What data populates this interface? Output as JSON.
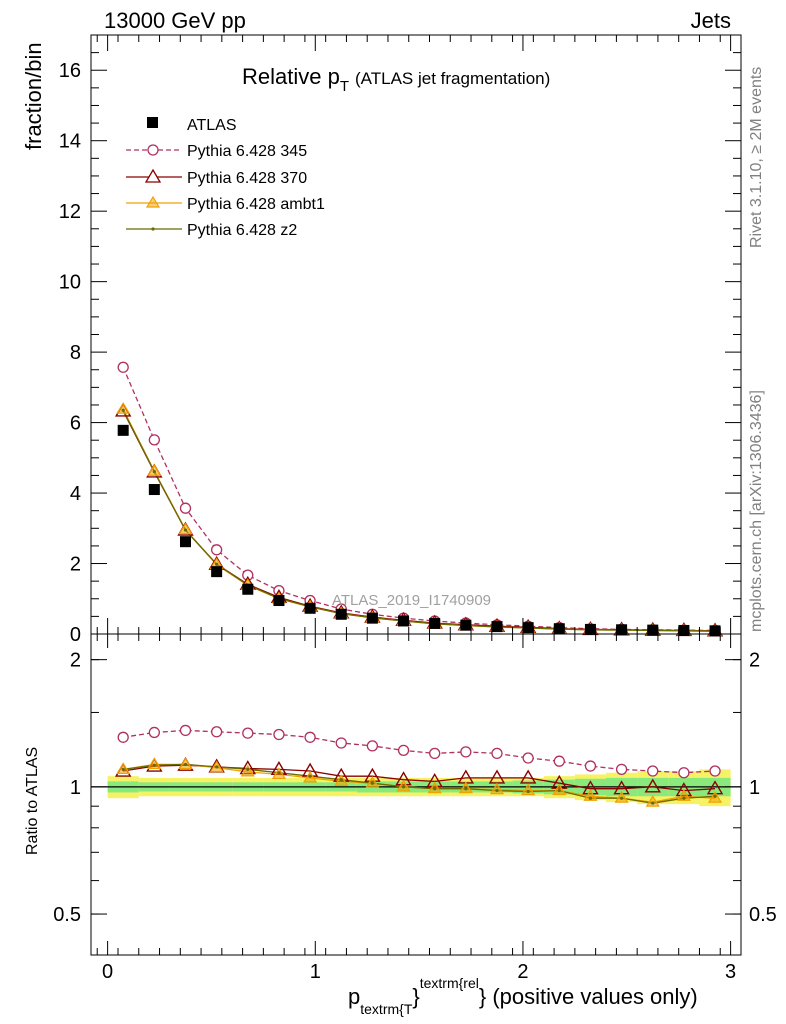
{
  "header": {
    "energy_label": "13000 GeV pp",
    "category_label": "Jets"
  },
  "side_labels": {
    "rivet": "Rivet 3.1.10, ≥ 2M events",
    "mcplots": "mcplots.cern.ch [arXiv:1306.3436]"
  },
  "chart_data": {
    "type": "line",
    "title": "Relative p",
    "title_subscript": "T",
    "title_suffix": "(ATLAS jet fragmentation)",
    "watermark": "ATLAS_2019_I1740909",
    "xlabel": "p",
    "xlabel_sub": "textrm{T",
    "xlabel_sup": "textrm{rel",
    "xlabel_suffix": "} (positive values only)",
    "ylabel_main": "fraction/bin",
    "ylabel_ratio": "Ratio to ATLAS",
    "xlim": [
      -0.08,
      3.05
    ],
    "ylim_main": [
      0,
      17
    ],
    "ylim_ratio": [
      0.4,
      2.3
    ],
    "ratio_log_scale": true,
    "x_ticks": [
      0,
      1,
      2,
      3
    ],
    "y_ticks_main": [
      0,
      2,
      4,
      6,
      8,
      10,
      12,
      14,
      16
    ],
    "y_ticks_ratio": [
      0.5,
      1,
      2
    ],
    "legend_position": "top-left",
    "x": [
      0.075,
      0.225,
      0.375,
      0.525,
      0.675,
      0.825,
      0.975,
      1.125,
      1.275,
      1.425,
      1.575,
      1.725,
      1.875,
      2.025,
      2.175,
      2.325,
      2.475,
      2.625,
      2.775,
      2.925
    ],
    "data": {
      "name": "ATLAS",
      "values": [
        5.78,
        4.1,
        2.62,
        1.77,
        1.27,
        0.95,
        0.73,
        0.56,
        0.45,
        0.37,
        0.3,
        0.25,
        0.21,
        0.18,
        0.15,
        0.13,
        0.12,
        0.11,
        0.1,
        0.09
      ],
      "band_outer_rel": [
        0.06,
        0.05,
        0.05,
        0.05,
        0.05,
        0.05,
        0.05,
        0.05,
        0.05,
        0.05,
        0.05,
        0.05,
        0.05,
        0.05,
        0.06,
        0.07,
        0.08,
        0.09,
        0.09,
        0.1
      ],
      "band_inner_rel": [
        0.03,
        0.025,
        0.025,
        0.025,
        0.025,
        0.025,
        0.025,
        0.025,
        0.03,
        0.03,
        0.03,
        0.03,
        0.03,
        0.035,
        0.04,
        0.045,
        0.05,
        0.05,
        0.05,
        0.05
      ]
    },
    "series": [
      {
        "name": "Pythia 6.428 345",
        "color": "#b03060",
        "marker": "circle-open",
        "dashed": true,
        "values": [
          7.57,
          5.51,
          3.57,
          2.39,
          1.67,
          1.23,
          0.95,
          0.71,
          0.56,
          0.45,
          0.37,
          0.31,
          0.26,
          0.22,
          0.18,
          0.15,
          0.13,
          0.12,
          0.11,
          0.1
        ],
        "ratio": [
          1.31,
          1.345,
          1.36,
          1.35,
          1.34,
          1.33,
          1.31,
          1.27,
          1.25,
          1.22,
          1.2,
          1.21,
          1.2,
          1.17,
          1.15,
          1.12,
          1.1,
          1.09,
          1.08,
          1.09
        ]
      },
      {
        "name": "Pythia 6.428 370",
        "color": "#8b0000",
        "marker": "triangle-open",
        "dashed": false,
        "values": [
          6.33,
          4.6,
          2.95,
          1.98,
          1.41,
          1.04,
          0.79,
          0.6,
          0.48,
          0.39,
          0.31,
          0.26,
          0.22,
          0.19,
          0.15,
          0.13,
          0.12,
          0.11,
          0.1,
          0.09
        ],
        "ratio": [
          1.09,
          1.12,
          1.125,
          1.115,
          1.105,
          1.1,
          1.09,
          1.06,
          1.06,
          1.04,
          1.03,
          1.05,
          1.05,
          1.05,
          1.02,
          0.99,
          0.99,
          1.0,
          0.98,
          0.99
        ]
      },
      {
        "name": "Pythia 6.428 ambt1",
        "color": "#f0a000",
        "marker": "triangle-filled",
        "dashed": false,
        "values": [
          6.38,
          4.62,
          2.96,
          1.97,
          1.38,
          1.0,
          0.77,
          0.58,
          0.46,
          0.37,
          0.29,
          0.24,
          0.2,
          0.17,
          0.14,
          0.12,
          0.11,
          0.1,
          0.09,
          0.08
        ],
        "ratio": [
          1.1,
          1.13,
          1.13,
          1.11,
          1.085,
          1.07,
          1.05,
          1.03,
          1.02,
          1.0,
          0.99,
          0.99,
          0.985,
          0.98,
          0.98,
          0.95,
          0.94,
          0.92,
          0.95,
          0.94
        ]
      },
      {
        "name": "Pythia 6.428 z2",
        "color": "#6b6b00",
        "marker": "dot",
        "dashed": false,
        "values": [
          6.35,
          4.61,
          2.95,
          1.98,
          1.39,
          1.01,
          0.77,
          0.58,
          0.46,
          0.37,
          0.29,
          0.24,
          0.2,
          0.17,
          0.14,
          0.12,
          0.11,
          0.1,
          0.09,
          0.08
        ],
        "ratio": [
          1.1,
          1.125,
          1.13,
          1.115,
          1.1,
          1.08,
          1.06,
          1.04,
          1.02,
          1.0,
          0.99,
          0.99,
          0.98,
          0.975,
          0.98,
          0.94,
          0.94,
          0.915,
          0.94,
          0.95
        ]
      }
    ]
  }
}
